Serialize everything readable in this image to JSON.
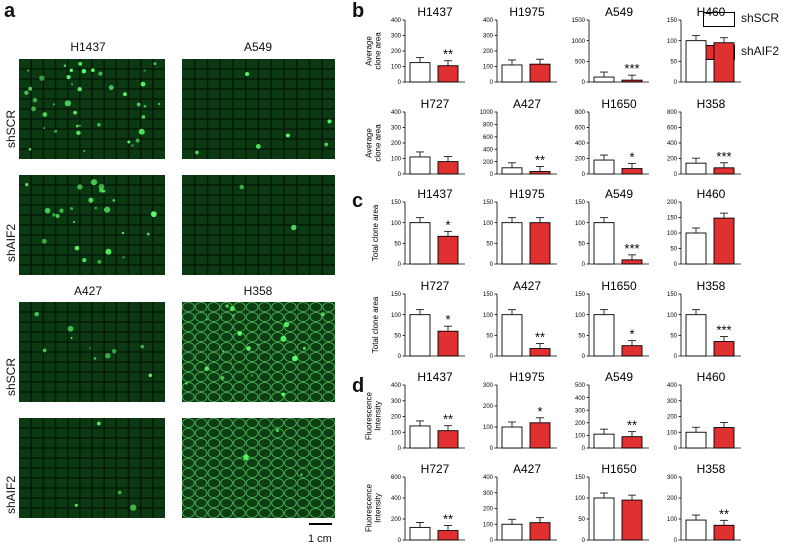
{
  "panels": {
    "a": "a",
    "b": "b",
    "c": "c",
    "d": "d"
  },
  "micro": {
    "top": {
      "left_title": "H1437",
      "right_title": "A549"
    },
    "bottom": {
      "left_title": "A427",
      "right_title": "H358"
    },
    "row_labels": [
      "shSCR",
      "shAIF2",
      "shSCR",
      "shAIF2"
    ],
    "scale_bar": "1 cm",
    "colors": {
      "well_bg": "#0b3a12",
      "grid": "#041a07",
      "bright": "#5cff6a"
    }
  },
  "legend": {
    "items": [
      {
        "label": "shSCR",
        "color": "#ffffff"
      },
      {
        "label": "shAIF2",
        "color": "#e03030"
      }
    ]
  },
  "ylabels": {
    "b": [
      "Average",
      "clone area"
    ],
    "c": "Total clone area",
    "d": [
      "Fluorescence",
      "Intensity"
    ]
  },
  "chart_data": [
    {
      "panel": "b",
      "type": "bar",
      "title": "H1437",
      "ylim": [
        0,
        400
      ],
      "ticks": [
        "0",
        "100",
        "200",
        "300",
        "400"
      ],
      "categories": [
        "shSCR",
        "shAIF2"
      ],
      "values": [
        125,
        105
      ],
      "sig": "**"
    },
    {
      "panel": "b",
      "type": "bar",
      "title": "H1975",
      "ylim": [
        0,
        400
      ],
      "ticks": [
        "0",
        "100",
        "200",
        "300",
        "400"
      ],
      "categories": [
        "shSCR",
        "shAIF2"
      ],
      "values": [
        110,
        115
      ],
      "sig": ""
    },
    {
      "panel": "b",
      "type": "bar",
      "title": "A549",
      "ylim": [
        0,
        1500
      ],
      "ticks": [
        "0",
        "500",
        "1000",
        "1500"
      ],
      "categories": [
        "shSCR",
        "shAIF2"
      ],
      "values": [
        120,
        45
      ],
      "sig": "***"
    },
    {
      "panel": "b",
      "type": "bar",
      "title": "H460",
      "ylim": [
        0,
        150
      ],
      "ticks": [
        "0",
        "50",
        "100",
        "150"
      ],
      "categories": [
        "shSCR",
        "shAIF2"
      ],
      "values": [
        100,
        95
      ],
      "sig": ""
    },
    {
      "panel": "b",
      "type": "bar",
      "title": "H727",
      "ylim": [
        0,
        400
      ],
      "ticks": [
        "0",
        "100",
        "200",
        "300",
        "400"
      ],
      "categories": [
        "shSCR",
        "shAIF2"
      ],
      "values": [
        110,
        80
      ],
      "sig": ""
    },
    {
      "panel": "b",
      "type": "bar",
      "title": "A427",
      "ylim": [
        0,
        1000
      ],
      "ticks": [
        "0",
        "200",
        "400",
        "600",
        "800",
        "1000"
      ],
      "categories": [
        "shSCR",
        "shAIF2"
      ],
      "values": [
        100,
        40
      ],
      "sig": "**"
    },
    {
      "panel": "b",
      "type": "bar",
      "title": "H1650",
      "ylim": [
        0,
        800
      ],
      "ticks": [
        "0",
        "200",
        "400",
        "600",
        "800"
      ],
      "categories": [
        "shSCR",
        "shAIF2"
      ],
      "values": [
        180,
        70
      ],
      "sig": "*"
    },
    {
      "panel": "b",
      "type": "bar",
      "title": "H358",
      "ylim": [
        0,
        800
      ],
      "ticks": [
        "0",
        "200",
        "400",
        "600",
        "800"
      ],
      "categories": [
        "shSCR",
        "shAIF2"
      ],
      "values": [
        140,
        80
      ],
      "sig": "***"
    },
    {
      "panel": "c",
      "type": "bar",
      "title": "H1437",
      "ylim": [
        0,
        150
      ],
      "ticks": [
        "0",
        "50",
        "100",
        "150"
      ],
      "categories": [
        "shSCR",
        "shAIF2"
      ],
      "values": [
        100,
        67
      ],
      "sig": "*"
    },
    {
      "panel": "c",
      "type": "bar",
      "title": "H1975",
      "ylim": [
        0,
        150
      ],
      "ticks": [
        "0",
        "50",
        "100",
        "150"
      ],
      "categories": [
        "shSCR",
        "shAIF2"
      ],
      "values": [
        100,
        100
      ],
      "sig": ""
    },
    {
      "panel": "c",
      "type": "bar",
      "title": "A549",
      "ylim": [
        0,
        150
      ],
      "ticks": [
        "0",
        "50",
        "100",
        "150"
      ],
      "categories": [
        "shSCR",
        "shAIF2"
      ],
      "values": [
        100,
        10
      ],
      "sig": "***"
    },
    {
      "panel": "c",
      "type": "bar",
      "title": "H460",
      "ylim": [
        0,
        200
      ],
      "ticks": [
        "0",
        "50",
        "100",
        "150",
        "200"
      ],
      "categories": [
        "shSCR",
        "shAIF2"
      ],
      "values": [
        100,
        148
      ],
      "sig": ""
    },
    {
      "panel": "c",
      "type": "bar",
      "title": "H727",
      "ylim": [
        0,
        150
      ],
      "ticks": [
        "0",
        "50",
        "100",
        "150"
      ],
      "categories": [
        "shSCR",
        "shAIF2"
      ],
      "values": [
        100,
        60
      ],
      "sig": "*"
    },
    {
      "panel": "c",
      "type": "bar",
      "title": "A427",
      "ylim": [
        0,
        150
      ],
      "ticks": [
        "0",
        "50",
        "100",
        "150"
      ],
      "categories": [
        "shSCR",
        "shAIF2"
      ],
      "values": [
        100,
        18
      ],
      "sig": "**"
    },
    {
      "panel": "c",
      "type": "bar",
      "title": "H1650",
      "ylim": [
        0,
        150
      ],
      "ticks": [
        "0",
        "50",
        "100",
        "150"
      ],
      "categories": [
        "shSCR",
        "shAIF2"
      ],
      "values": [
        100,
        25
      ],
      "sig": "*"
    },
    {
      "panel": "c",
      "type": "bar",
      "title": "H358",
      "ylim": [
        0,
        150
      ],
      "ticks": [
        "0",
        "50",
        "100",
        "150"
      ],
      "categories": [
        "shSCR",
        "shAIF2"
      ],
      "values": [
        100,
        35
      ],
      "sig": "***"
    },
    {
      "panel": "d",
      "type": "bar",
      "title": "H1437",
      "ylim": [
        0,
        400
      ],
      "ticks": [
        "0",
        "100",
        "200",
        "300",
        "400"
      ],
      "categories": [
        "shSCR",
        "shAIF2"
      ],
      "values": [
        140,
        110
      ],
      "sig": "**"
    },
    {
      "panel": "d",
      "type": "bar",
      "title": "H1975",
      "ylim": [
        0,
        300
      ],
      "ticks": [
        "0",
        "100",
        "200",
        "300"
      ],
      "categories": [
        "shSCR",
        "shAIF2"
      ],
      "values": [
        100,
        120
      ],
      "sig": "*"
    },
    {
      "panel": "d",
      "type": "bar",
      "title": "A549",
      "ylim": [
        0,
        500
      ],
      "ticks": [
        "0",
        "100",
        "200",
        "300",
        "400",
        "500"
      ],
      "categories": [
        "shSCR",
        "shAIF2"
      ],
      "values": [
        110,
        90
      ],
      "sig": "**"
    },
    {
      "panel": "d",
      "type": "bar",
      "title": "H460",
      "ylim": [
        0,
        400
      ],
      "ticks": [
        "0",
        "100",
        "200",
        "300",
        "400"
      ],
      "categories": [
        "shSCR",
        "shAIF2"
      ],
      "values": [
        100,
        130
      ],
      "sig": ""
    },
    {
      "panel": "d",
      "type": "bar",
      "title": "H727",
      "ylim": [
        0,
        600
      ],
      "ticks": [
        "0",
        "200",
        "400",
        "600"
      ],
      "categories": [
        "shSCR",
        "shAIF2"
      ],
      "values": [
        120,
        90
      ],
      "sig": "**"
    },
    {
      "panel": "d",
      "type": "bar",
      "title": "A427",
      "ylim": [
        0,
        400
      ],
      "ticks": [
        "0",
        "100",
        "200",
        "300",
        "400"
      ],
      "categories": [
        "shSCR",
        "shAIF2"
      ],
      "values": [
        100,
        110
      ],
      "sig": ""
    },
    {
      "panel": "d",
      "type": "bar",
      "title": "H1650",
      "ylim": [
        0,
        150
      ],
      "ticks": [
        "0",
        "50",
        "100",
        "150"
      ],
      "categories": [
        "shSCR",
        "shAIF2"
      ],
      "values": [
        100,
        95
      ],
      "sig": ""
    },
    {
      "panel": "d",
      "type": "bar",
      "title": "H358",
      "ylim": [
        0,
        300
      ],
      "ticks": [
        "0",
        "100",
        "200",
        "300"
      ],
      "categories": [
        "shSCR",
        "shAIF2"
      ],
      "values": [
        95,
        70
      ],
      "sig": "**"
    }
  ]
}
